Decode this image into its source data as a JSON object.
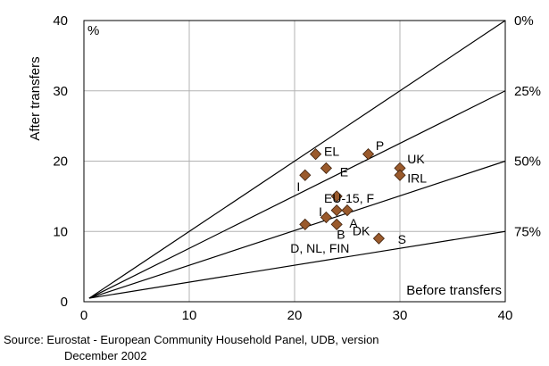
{
  "chart_data": {
    "type": "scatter",
    "ylabel": "After transfers",
    "xlabel": "Before transfers",
    "unit_label": "%",
    "xlim": [
      0,
      40
    ],
    "ylim": [
      0,
      40
    ],
    "x_ticks": [
      "0",
      "10",
      "20",
      "30",
      "40"
    ],
    "y_ticks": [
      "0",
      "10",
      "20",
      "30",
      "40"
    ],
    "grid": true,
    "marker_color": "#9a5a2c",
    "reference_lines": [
      {
        "label": "0%",
        "slope": 1.0
      },
      {
        "label": "25%",
        "slope": 0.75
      },
      {
        "label": "50%",
        "slope": 0.5
      },
      {
        "label": "75%",
        "slope": 0.25
      }
    ],
    "points": [
      {
        "x": 22,
        "y": 21
      },
      {
        "x": 27,
        "y": 21
      },
      {
        "x": 23,
        "y": 19
      },
      {
        "x": 30,
        "y": 19
      },
      {
        "x": 30,
        "y": 18
      },
      {
        "x": 21,
        "y": 18
      },
      {
        "x": 24,
        "y": 15
      },
      {
        "x": 24,
        "y": 13
      },
      {
        "x": 25,
        "y": 13
      },
      {
        "x": 23,
        "y": 12
      },
      {
        "x": 24,
        "y": 11
      },
      {
        "x": 21,
        "y": 11
      },
      {
        "x": 28,
        "y": 9
      }
    ],
    "point_labels": [
      {
        "text": "EL",
        "x": 22.8,
        "y": 21.4
      },
      {
        "text": "P",
        "x": 27.7,
        "y": 22.2
      },
      {
        "text": "E",
        "x": 24.3,
        "y": 18.5
      },
      {
        "text": "UK",
        "x": 30.7,
        "y": 20.3
      },
      {
        "text": "IRL",
        "x": 30.7,
        "y": 17.6
      },
      {
        "text": "I",
        "x": 20.2,
        "y": 16.4
      },
      {
        "text": "EU-15, F",
        "x": 22.8,
        "y": 14.7
      },
      {
        "text": "I",
        "x": 22.3,
        "y": 12.8
      },
      {
        "text": "A",
        "x": 25.2,
        "y": 11.2
      },
      {
        "text": "B",
        "x": 24.0,
        "y": 9.6
      },
      {
        "text": "DK",
        "x": 25.5,
        "y": 10.1
      },
      {
        "text": "D, NL, FIN",
        "x": 19.6,
        "y": 7.6
      },
      {
        "text": "S",
        "x": 29.8,
        "y": 8.9
      }
    ]
  },
  "source": {
    "line1": "Source:  Eurostat - European Community Household Panel, UDB, version",
    "line2": "December 2002"
  }
}
